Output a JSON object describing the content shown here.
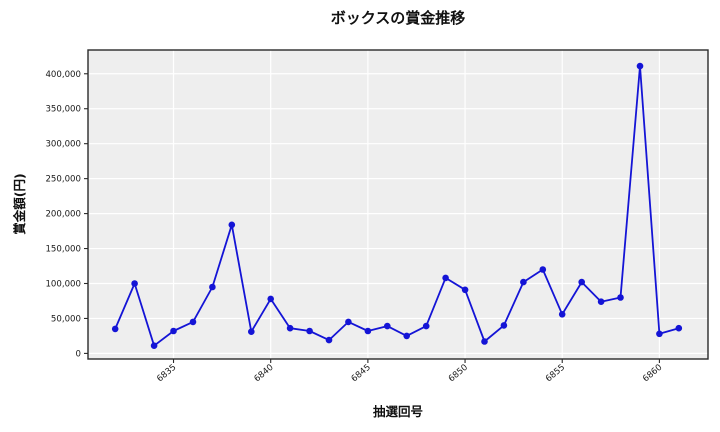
{
  "chart_data": {
    "type": "line",
    "title": "ボックスの賞金推移",
    "xlabel": "抽選回号",
    "ylabel": "賞金額(円)",
    "x": [
      6832,
      6833,
      6834,
      6835,
      6836,
      6837,
      6838,
      6839,
      6840,
      6841,
      6842,
      6843,
      6844,
      6845,
      6846,
      6847,
      6848,
      6849,
      6850,
      6851,
      6852,
      6853,
      6854,
      6855,
      6856,
      6857,
      6858,
      6859,
      6860,
      6861
    ],
    "y": [
      35000,
      100000,
      11000,
      32000,
      45000,
      95000,
      184000,
      31000,
      78000,
      36000,
      32000,
      19000,
      45000,
      32000,
      39000,
      25000,
      39000,
      108000,
      91000,
      17000,
      40000,
      102000,
      120000,
      56000,
      102000,
      74000,
      80000,
      411000,
      28000,
      36000
    ],
    "xticks": [
      6835,
      6840,
      6845,
      6850,
      6855,
      6860
    ],
    "yticks": [
      0,
      50000,
      100000,
      150000,
      200000,
      250000,
      300000,
      350000,
      400000
    ],
    "xlim": [
      6830.6,
      6862.5
    ],
    "ylim": [
      -8000,
      434000
    ],
    "grid": true,
    "legend_position": "none",
    "line_color": "#1414d6",
    "plot_bg_color": "#eeeeee",
    "grid_color": "#ffffff",
    "spine_color": "#2a2a2a",
    "tick_label_color": "#1a1a1a",
    "marker": "o"
  }
}
